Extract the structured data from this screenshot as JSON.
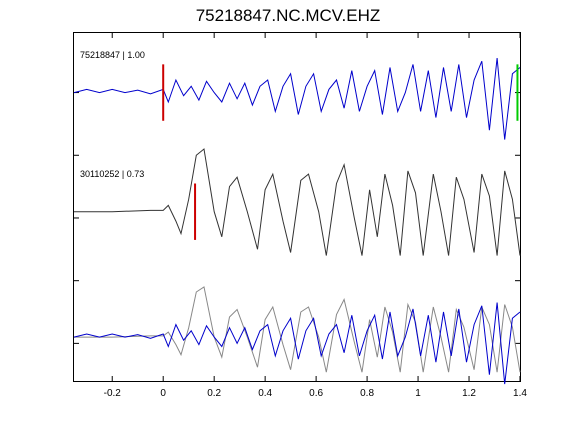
{
  "chart_data": {
    "type": "line",
    "title": "75218847.NC.MCV.EHZ",
    "xlabel": "",
    "ylabel": "",
    "xlim": [
      -0.35,
      1.4
    ],
    "x_ticks": [
      -0.2,
      0,
      0.2,
      0.4,
      0.6,
      0.8,
      1,
      1.2,
      1.4
    ],
    "x_tick_labels": [
      "-0.2",
      "0",
      "0.2",
      "0.4",
      "0.6",
      "0.8",
      "1",
      "1.2",
      "1.4"
    ],
    "y_ticks": [
      4,
      3,
      2,
      1,
      0
    ],
    "grid": false,
    "traces": [
      {
        "label": "75218847 | 1.00",
        "color": "#0000cc",
        "offset": 4,
        "points": [
          [
            -0.35,
            0.0
          ],
          [
            -0.3,
            0.05
          ],
          [
            -0.25,
            0.0
          ],
          [
            -0.2,
            0.05
          ],
          [
            -0.15,
            0.0
          ],
          [
            -0.1,
            0.04
          ],
          [
            -0.05,
            -0.02
          ],
          [
            0.0,
            0.05
          ],
          [
            0.02,
            -0.15
          ],
          [
            0.05,
            0.2
          ],
          [
            0.08,
            -0.05
          ],
          [
            0.11,
            0.1
          ],
          [
            0.14,
            -0.12
          ],
          [
            0.17,
            0.18
          ],
          [
            0.2,
            0.0
          ],
          [
            0.23,
            -0.15
          ],
          [
            0.26,
            0.15
          ],
          [
            0.29,
            -0.1
          ],
          [
            0.32,
            0.15
          ],
          [
            0.35,
            -0.2
          ],
          [
            0.38,
            0.1
          ],
          [
            0.41,
            0.2
          ],
          [
            0.44,
            -0.3
          ],
          [
            0.47,
            0.1
          ],
          [
            0.5,
            0.3
          ],
          [
            0.53,
            -0.35
          ],
          [
            0.56,
            0.1
          ],
          [
            0.59,
            0.3
          ],
          [
            0.62,
            -0.3
          ],
          [
            0.65,
            0.05
          ],
          [
            0.68,
            0.2
          ],
          [
            0.71,
            -0.25
          ],
          [
            0.74,
            0.35
          ],
          [
            0.77,
            -0.3
          ],
          [
            0.8,
            0.1
          ],
          [
            0.83,
            0.35
          ],
          [
            0.86,
            -0.35
          ],
          [
            0.89,
            0.4
          ],
          [
            0.92,
            -0.3
          ],
          [
            0.95,
            0.0
          ],
          [
            0.98,
            0.45
          ],
          [
            1.01,
            -0.3
          ],
          [
            1.04,
            0.35
          ],
          [
            1.07,
            -0.4
          ],
          [
            1.1,
            0.4
          ],
          [
            1.13,
            -0.3
          ],
          [
            1.16,
            0.45
          ],
          [
            1.19,
            -0.4
          ],
          [
            1.22,
            0.2
          ],
          [
            1.25,
            0.5
          ],
          [
            1.28,
            -0.6
          ],
          [
            1.31,
            0.55
          ],
          [
            1.34,
            -0.75
          ],
          [
            1.37,
            0.3
          ],
          [
            1.4,
            0.4
          ]
        ]
      },
      {
        "label": "30110252 | 0.73",
        "color": "#333333",
        "offset": 2.1,
        "points": [
          [
            -0.35,
            0.0
          ],
          [
            -0.2,
            0.0
          ],
          [
            -0.05,
            0.02
          ],
          [
            0.0,
            0.02
          ],
          [
            0.02,
            0.1
          ],
          [
            0.05,
            -0.15
          ],
          [
            0.07,
            -0.35
          ],
          [
            0.1,
            0.2
          ],
          [
            0.13,
            0.9
          ],
          [
            0.16,
            1.0
          ],
          [
            0.2,
            0.0
          ],
          [
            0.23,
            -0.4
          ],
          [
            0.26,
            0.4
          ],
          [
            0.29,
            0.55
          ],
          [
            0.33,
            0.0
          ],
          [
            0.37,
            -0.6
          ],
          [
            0.4,
            0.35
          ],
          [
            0.43,
            0.6
          ],
          [
            0.47,
            -0.15
          ],
          [
            0.5,
            -0.65
          ],
          [
            0.54,
            0.5
          ],
          [
            0.57,
            0.6
          ],
          [
            0.61,
            0.0
          ],
          [
            0.64,
            -0.7
          ],
          [
            0.68,
            0.45
          ],
          [
            0.71,
            0.75
          ],
          [
            0.75,
            -0.1
          ],
          [
            0.78,
            -0.7
          ],
          [
            0.81,
            0.35
          ],
          [
            0.84,
            -0.4
          ],
          [
            0.87,
            0.6
          ],
          [
            0.9,
            0.1
          ],
          [
            0.93,
            -0.7
          ],
          [
            0.96,
            0.65
          ],
          [
            0.99,
            0.3
          ],
          [
            1.02,
            -0.7
          ],
          [
            1.06,
            0.6
          ],
          [
            1.09,
            0.0
          ],
          [
            1.12,
            -0.7
          ],
          [
            1.15,
            0.55
          ],
          [
            1.18,
            0.2
          ],
          [
            1.22,
            -0.65
          ],
          [
            1.25,
            0.6
          ],
          [
            1.28,
            0.25
          ],
          [
            1.31,
            -0.7
          ],
          [
            1.34,
            0.65
          ],
          [
            1.37,
            0.2
          ],
          [
            1.4,
            -0.7
          ]
        ]
      },
      {
        "label": "",
        "color": "#888888",
        "offset": 0.1,
        "points": [
          [
            -0.35,
            0.0
          ],
          [
            -0.2,
            0.0
          ],
          [
            -0.05,
            0.02
          ],
          [
            0.0,
            0.02
          ],
          [
            0.02,
            0.08
          ],
          [
            0.05,
            -0.12
          ],
          [
            0.07,
            -0.28
          ],
          [
            0.1,
            0.15
          ],
          [
            0.13,
            0.72
          ],
          [
            0.16,
            0.8
          ],
          [
            0.2,
            0.0
          ],
          [
            0.23,
            -0.32
          ],
          [
            0.26,
            0.32
          ],
          [
            0.29,
            0.44
          ],
          [
            0.33,
            0.0
          ],
          [
            0.37,
            -0.48
          ],
          [
            0.4,
            0.28
          ],
          [
            0.43,
            0.48
          ],
          [
            0.47,
            -0.12
          ],
          [
            0.5,
            -0.52
          ],
          [
            0.54,
            0.4
          ],
          [
            0.57,
            0.48
          ],
          [
            0.61,
            0.0
          ],
          [
            0.64,
            -0.56
          ],
          [
            0.68,
            0.36
          ],
          [
            0.71,
            0.6
          ],
          [
            0.75,
            -0.08
          ],
          [
            0.78,
            -0.56
          ],
          [
            0.81,
            0.28
          ],
          [
            0.84,
            -0.32
          ],
          [
            0.87,
            0.48
          ],
          [
            0.9,
            0.08
          ],
          [
            0.93,
            -0.56
          ],
          [
            0.96,
            0.52
          ],
          [
            0.99,
            0.24
          ],
          [
            1.02,
            -0.56
          ],
          [
            1.06,
            0.48
          ],
          [
            1.09,
            0.0
          ],
          [
            1.12,
            -0.56
          ],
          [
            1.15,
            0.44
          ],
          [
            1.18,
            0.16
          ],
          [
            1.22,
            -0.52
          ],
          [
            1.25,
            0.48
          ],
          [
            1.28,
            0.2
          ],
          [
            1.31,
            -0.56
          ],
          [
            1.34,
            0.52
          ],
          [
            1.37,
            0.16
          ],
          [
            1.4,
            -0.56
          ]
        ]
      },
      {
        "label": "",
        "color": "#0000cc",
        "offset": 0.1,
        "points": [
          [
            -0.35,
            0.0
          ],
          [
            -0.3,
            0.05
          ],
          [
            -0.25,
            0.0
          ],
          [
            -0.2,
            0.05
          ],
          [
            -0.15,
            0.0
          ],
          [
            -0.1,
            0.04
          ],
          [
            -0.05,
            -0.02
          ],
          [
            0.0,
            0.05
          ],
          [
            0.02,
            -0.15
          ],
          [
            0.05,
            0.2
          ],
          [
            0.08,
            -0.05
          ],
          [
            0.11,
            0.1
          ],
          [
            0.14,
            -0.12
          ],
          [
            0.17,
            0.18
          ],
          [
            0.2,
            0.0
          ],
          [
            0.23,
            -0.15
          ],
          [
            0.26,
            0.15
          ],
          [
            0.29,
            -0.1
          ],
          [
            0.32,
            0.15
          ],
          [
            0.35,
            -0.2
          ],
          [
            0.38,
            0.1
          ],
          [
            0.41,
            0.2
          ],
          [
            0.44,
            -0.3
          ],
          [
            0.47,
            0.1
          ],
          [
            0.5,
            0.3
          ],
          [
            0.53,
            -0.35
          ],
          [
            0.56,
            0.1
          ],
          [
            0.59,
            0.3
          ],
          [
            0.62,
            -0.3
          ],
          [
            0.65,
            0.05
          ],
          [
            0.68,
            0.2
          ],
          [
            0.71,
            -0.25
          ],
          [
            0.74,
            0.35
          ],
          [
            0.77,
            -0.3
          ],
          [
            0.8,
            0.1
          ],
          [
            0.83,
            0.35
          ],
          [
            0.86,
            -0.35
          ],
          [
            0.89,
            0.4
          ],
          [
            0.92,
            -0.3
          ],
          [
            0.95,
            0.0
          ],
          [
            0.98,
            0.45
          ],
          [
            1.01,
            -0.3
          ],
          [
            1.04,
            0.35
          ],
          [
            1.07,
            -0.4
          ],
          [
            1.1,
            0.4
          ],
          [
            1.13,
            -0.3
          ],
          [
            1.16,
            0.45
          ],
          [
            1.19,
            -0.4
          ],
          [
            1.22,
            0.2
          ],
          [
            1.25,
            0.5
          ],
          [
            1.28,
            -0.6
          ],
          [
            1.31,
            0.55
          ],
          [
            1.34,
            -0.75
          ],
          [
            1.37,
            0.3
          ],
          [
            1.4,
            0.4
          ]
        ]
      }
    ],
    "markers": [
      {
        "trace": 0,
        "x": 0.0,
        "color": "#cc0000"
      },
      {
        "trace": 0,
        "x": 1.39,
        "color": "#00cc00"
      },
      {
        "trace": 1,
        "x": 0.125,
        "color": "#cc0000"
      }
    ]
  }
}
